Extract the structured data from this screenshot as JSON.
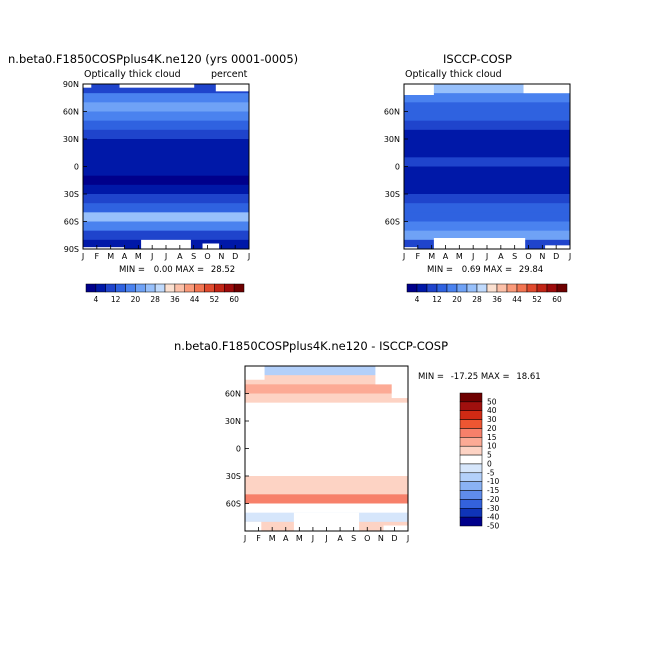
{
  "chart_data": [
    {
      "type": "heatmap",
      "title": "n.beta0.F1850COSPplus4K.ne120 (yrs 0001-0005)",
      "left_label": "Optically thick cloud",
      "right_label": "percent",
      "x_ticks": [
        "J",
        "F",
        "M",
        "A",
        "M",
        "J",
        "J",
        "A",
        "S",
        "O",
        "N",
        "D",
        "J"
      ],
      "y_ticks": [
        "90N",
        "60N",
        "30N",
        "0",
        "30S",
        "60S",
        "90S"
      ],
      "ylim": [
        -90,
        90
      ],
      "stats": {
        "min_label": "MIN =",
        "min": "0.00",
        "max_label": "MAX =",
        "max": "28.52"
      },
      "colorbar_labels": [
        "4",
        "12",
        "20",
        "28",
        "36",
        "44",
        "52",
        "60"
      ],
      "zonal_profile": [
        {
          "lat": 85,
          "value": 10
        },
        {
          "lat": 75,
          "value": 17
        },
        {
          "lat": 65,
          "value": 20
        },
        {
          "lat": 55,
          "value": 18
        },
        {
          "lat": 45,
          "value": 14
        },
        {
          "lat": 35,
          "value": 9
        },
        {
          "lat": 25,
          "value": 4
        },
        {
          "lat": 15,
          "value": 4
        },
        {
          "lat": 5,
          "value": 5
        },
        {
          "lat": -5,
          "value": 4
        },
        {
          "lat": -15,
          "value": 3
        },
        {
          "lat": -25,
          "value": 4
        },
        {
          "lat": -35,
          "value": 8
        },
        {
          "lat": -45,
          "value": 14
        },
        {
          "lat": -55,
          "value": 24
        },
        {
          "lat": -65,
          "value": 17
        },
        {
          "lat": -75,
          "value": 10
        },
        {
          "lat": -85,
          "value": 5
        }
      ]
    },
    {
      "type": "heatmap",
      "title": "ISCCP-COSP",
      "left_label": "Optically thick cloud",
      "x_ticks": [
        "J",
        "F",
        "M",
        "A",
        "M",
        "J",
        "J",
        "A",
        "S",
        "O",
        "N",
        "D",
        "J"
      ],
      "y_ticks": [
        "60N",
        "30N",
        "0",
        "30S",
        "60S"
      ],
      "ylim": [
        -90,
        90
      ],
      "stats": {
        "min_label": "MIN =",
        "min": "0.69",
        "max_label": "MAX =",
        "max": "29.84"
      },
      "colorbar_labels": [
        "4",
        "12",
        "20",
        "28",
        "36",
        "44",
        "52",
        "60"
      ],
      "zonal_profile": [
        {
          "lat": 85,
          "value": 24
        },
        {
          "lat": 75,
          "value": 16
        },
        {
          "lat": 65,
          "value": 12
        },
        {
          "lat": 55,
          "value": 14
        },
        {
          "lat": 45,
          "value": 10
        },
        {
          "lat": 35,
          "value": 6
        },
        {
          "lat": 25,
          "value": 4
        },
        {
          "lat": 15,
          "value": 6
        },
        {
          "lat": 5,
          "value": 8
        },
        {
          "lat": -5,
          "value": 5
        },
        {
          "lat": -15,
          "value": 4
        },
        {
          "lat": -25,
          "value": 6
        },
        {
          "lat": -35,
          "value": 9
        },
        {
          "lat": -45,
          "value": 12
        },
        {
          "lat": -55,
          "value": 14
        },
        {
          "lat": -65,
          "value": 18
        },
        {
          "lat": -75,
          "value": 20
        },
        {
          "lat": -85,
          "value": 8
        }
      ]
    },
    {
      "type": "heatmap",
      "title": "n.beta0.F1850COSPplus4K.ne120 - ISCCP-COSP",
      "x_ticks": [
        "J",
        "F",
        "M",
        "A",
        "M",
        "J",
        "J",
        "A",
        "S",
        "O",
        "N",
        "D",
        "J"
      ],
      "y_ticks": [
        "60N",
        "30N",
        "0",
        "30S",
        "60S"
      ],
      "ylim": [
        -90,
        90
      ],
      "stats": {
        "min_label": "MIN =",
        "min": "-17.25",
        "max_label": "MAX =",
        "max": "18.61"
      },
      "colorbar_labels": [
        "50",
        "40",
        "30",
        "20",
        "15",
        "10",
        "5",
        "0",
        "-5",
        "-10",
        "-15",
        "-20",
        "-30",
        "-40",
        "-50"
      ],
      "zonal_profile": [
        {
          "lat": 85,
          "value": -12
        },
        {
          "lat": 75,
          "value": 2
        },
        {
          "lat": 65,
          "value": 5
        },
        {
          "lat": 55,
          "value": 3
        },
        {
          "lat": 45,
          "value": -2
        },
        {
          "lat": 35,
          "value": -3
        },
        {
          "lat": 25,
          "value": -3
        },
        {
          "lat": 15,
          "value": -3
        },
        {
          "lat": 5,
          "value": -4
        },
        {
          "lat": -5,
          "value": -2
        },
        {
          "lat": -15,
          "value": -2
        },
        {
          "lat": -25,
          "value": -2
        },
        {
          "lat": -35,
          "value": 2
        },
        {
          "lat": -45,
          "value": 3
        },
        {
          "lat": -55,
          "value": 12
        },
        {
          "lat": -65,
          "value": -2
        },
        {
          "lat": -75,
          "value": -10
        },
        {
          "lat": -85,
          "value": 2
        }
      ]
    }
  ],
  "colors": {
    "seq_scale": [
      "#00008b",
      "#0018a8",
      "#1f44cc",
      "#2f62e0",
      "#4a82ef",
      "#6fa2f6",
      "#97c0fb",
      "#c0dafc",
      "#fbe0d0",
      "#fcc0a8",
      "#fa9a7a",
      "#f27552",
      "#e04a2e",
      "#c22516",
      "#9e0b0b",
      "#6e0000"
    ],
    "diff_scale": [
      "#6e0000",
      "#a0100e",
      "#d02a14",
      "#ee5632",
      "#f7806a",
      "#fcaa95",
      "#fdd3c4",
      "#ffffff",
      "#d6e6fb",
      "#b3d0fa",
      "#8ab2f4",
      "#5f8cec",
      "#3462dc",
      "#0f34b8",
      "#00008b"
    ]
  }
}
